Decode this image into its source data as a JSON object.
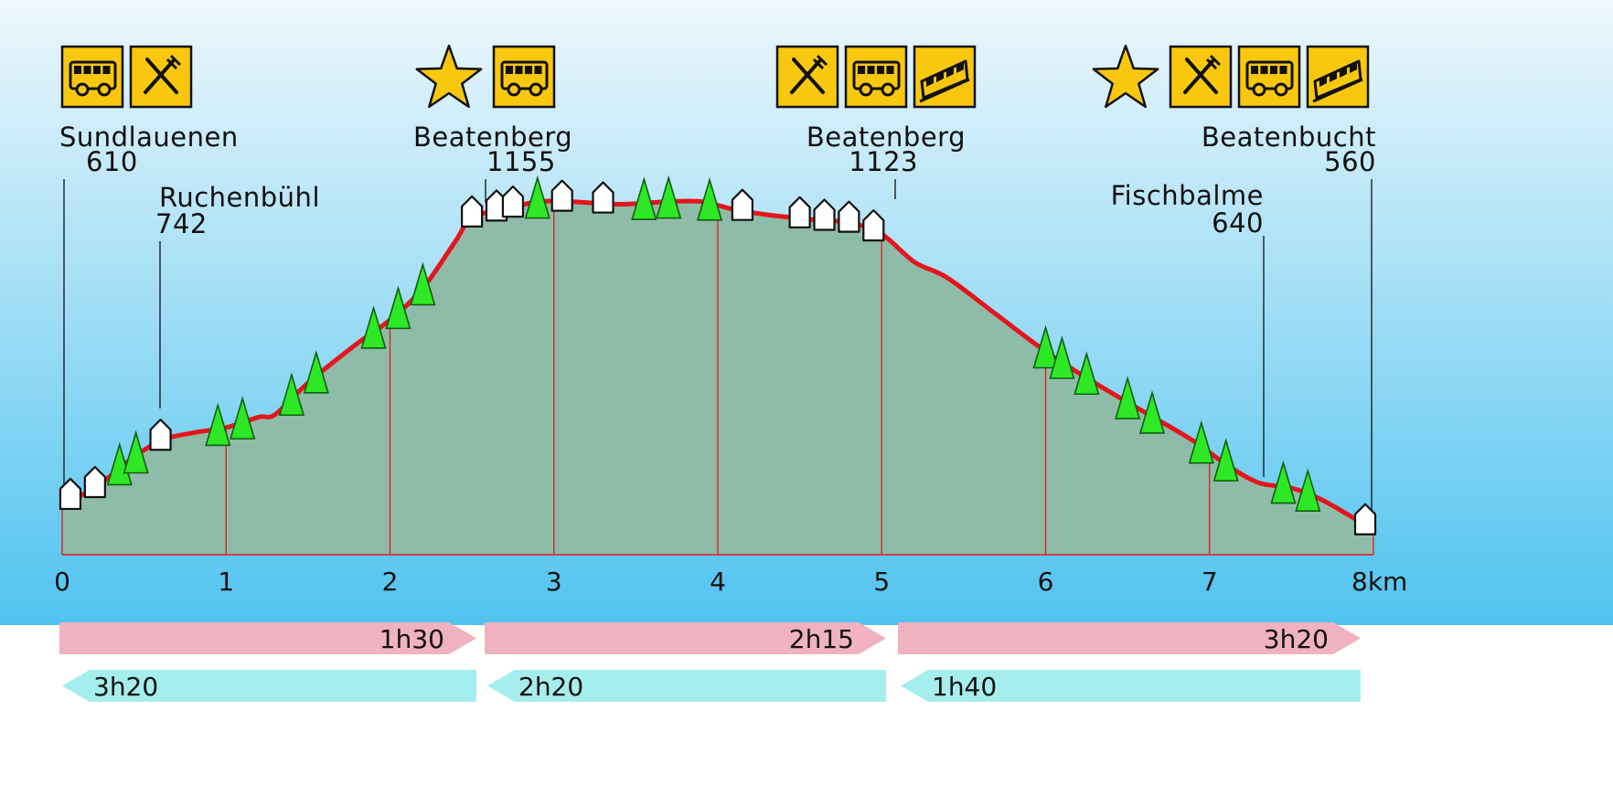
{
  "colors": {
    "sky_top": "#eef7fc",
    "sky_bottom": "#4fc3ef",
    "terrain": "#8fbca8",
    "route_line": "#e3161d",
    "icon_yellow": "#f9c80e",
    "tree_green": "#2ee826",
    "forward_arrow": "#f0b2c0",
    "return_arrow": "#a6eeee"
  },
  "chart_data": {
    "type": "area",
    "x_unit": "km",
    "xlim": [
      0,
      8
    ],
    "x_ticks": [
      "0",
      "1",
      "2",
      "3",
      "4",
      "5",
      "6",
      "7",
      "8km"
    ],
    "elevation_profile": {
      "x": [
        0,
        0.2,
        0.4,
        0.6,
        0.8,
        1.0,
        1.2,
        1.3,
        1.5,
        1.8,
        2.0,
        2.2,
        2.4,
        2.5,
        2.7,
        2.9,
        3.1,
        3.4,
        3.7,
        3.9,
        4.1,
        4.3,
        4.6,
        4.8,
        5.0,
        5.2,
        5.4,
        5.7,
        6.0,
        6.3,
        6.6,
        6.9,
        7.1,
        7.3,
        7.5,
        7.7,
        8.0
      ],
      "y": [
        610,
        640,
        690,
        730,
        745,
        755,
        775,
        780,
        840,
        915,
        960,
        1020,
        1110,
        1155,
        1170,
        1185,
        1185,
        1180,
        1185,
        1185,
        1170,
        1160,
        1150,
        1145,
        1123,
        1070,
        1040,
        970,
        900,
        840,
        785,
        730,
        685,
        650,
        640,
        615,
        560
      ]
    },
    "waypoints": [
      {
        "name": "Sundlauenen",
        "elevation": "610",
        "km": 0
      },
      {
        "name": "Ruchenbühl",
        "elevation": "742",
        "km": 0.6
      },
      {
        "name": "Beatenberg",
        "elevation": "1155",
        "km": 2.55
      },
      {
        "name": "Beatenberg",
        "elevation": "1123",
        "km": 5.0
      },
      {
        "name": "Fischbalme",
        "elevation": "640",
        "km": 7.25
      },
      {
        "name": "Beatenbucht",
        "elevation": "560",
        "km": 8.0
      }
    ],
    "amenity_groups": [
      {
        "at": "Sundlauenen",
        "icons": [
          "bus-icon",
          "restaurant-icon"
        ]
      },
      {
        "at": "Beatenberg 1155",
        "icons": [
          "star-icon",
          "bus-icon"
        ]
      },
      {
        "at": "Beatenberg 1123",
        "icons": [
          "restaurant-icon",
          "bus-icon",
          "funicular-icon"
        ]
      },
      {
        "at": "Beatenbucht",
        "icons": [
          "star-icon",
          "restaurant-icon",
          "bus-icon",
          "funicular-icon"
        ]
      }
    ],
    "segments_forward": [
      {
        "from_km": 0,
        "to_km": 2.55,
        "time": "1h30"
      },
      {
        "from_km": 2.55,
        "to_km": 5.0,
        "time": "2h15"
      },
      {
        "from_km": 5.0,
        "to_km": 8.0,
        "time": "3h20"
      }
    ],
    "segments_return": [
      {
        "from_km": 0,
        "to_km": 2.55,
        "time": "3h20"
      },
      {
        "from_km": 2.55,
        "to_km": 5.0,
        "time": "2h20"
      },
      {
        "from_km": 5.0,
        "to_km": 8.0,
        "time": "1h40"
      }
    ],
    "markers": {
      "houses_km": [
        0.05,
        0.2,
        0.6,
        2.5,
        2.65,
        2.75,
        3.05,
        3.3,
        4.15,
        4.5,
        4.65,
        4.8,
        4.95,
        7.95
      ],
      "trees_km": [
        0.35,
        0.45,
        0.95,
        1.1,
        1.4,
        1.55,
        1.9,
        2.05,
        2.2,
        2.9,
        3.55,
        3.7,
        3.95,
        6.0,
        6.1,
        6.25,
        6.5,
        6.65,
        6.95,
        7.1,
        7.45,
        7.6
      ]
    }
  }
}
